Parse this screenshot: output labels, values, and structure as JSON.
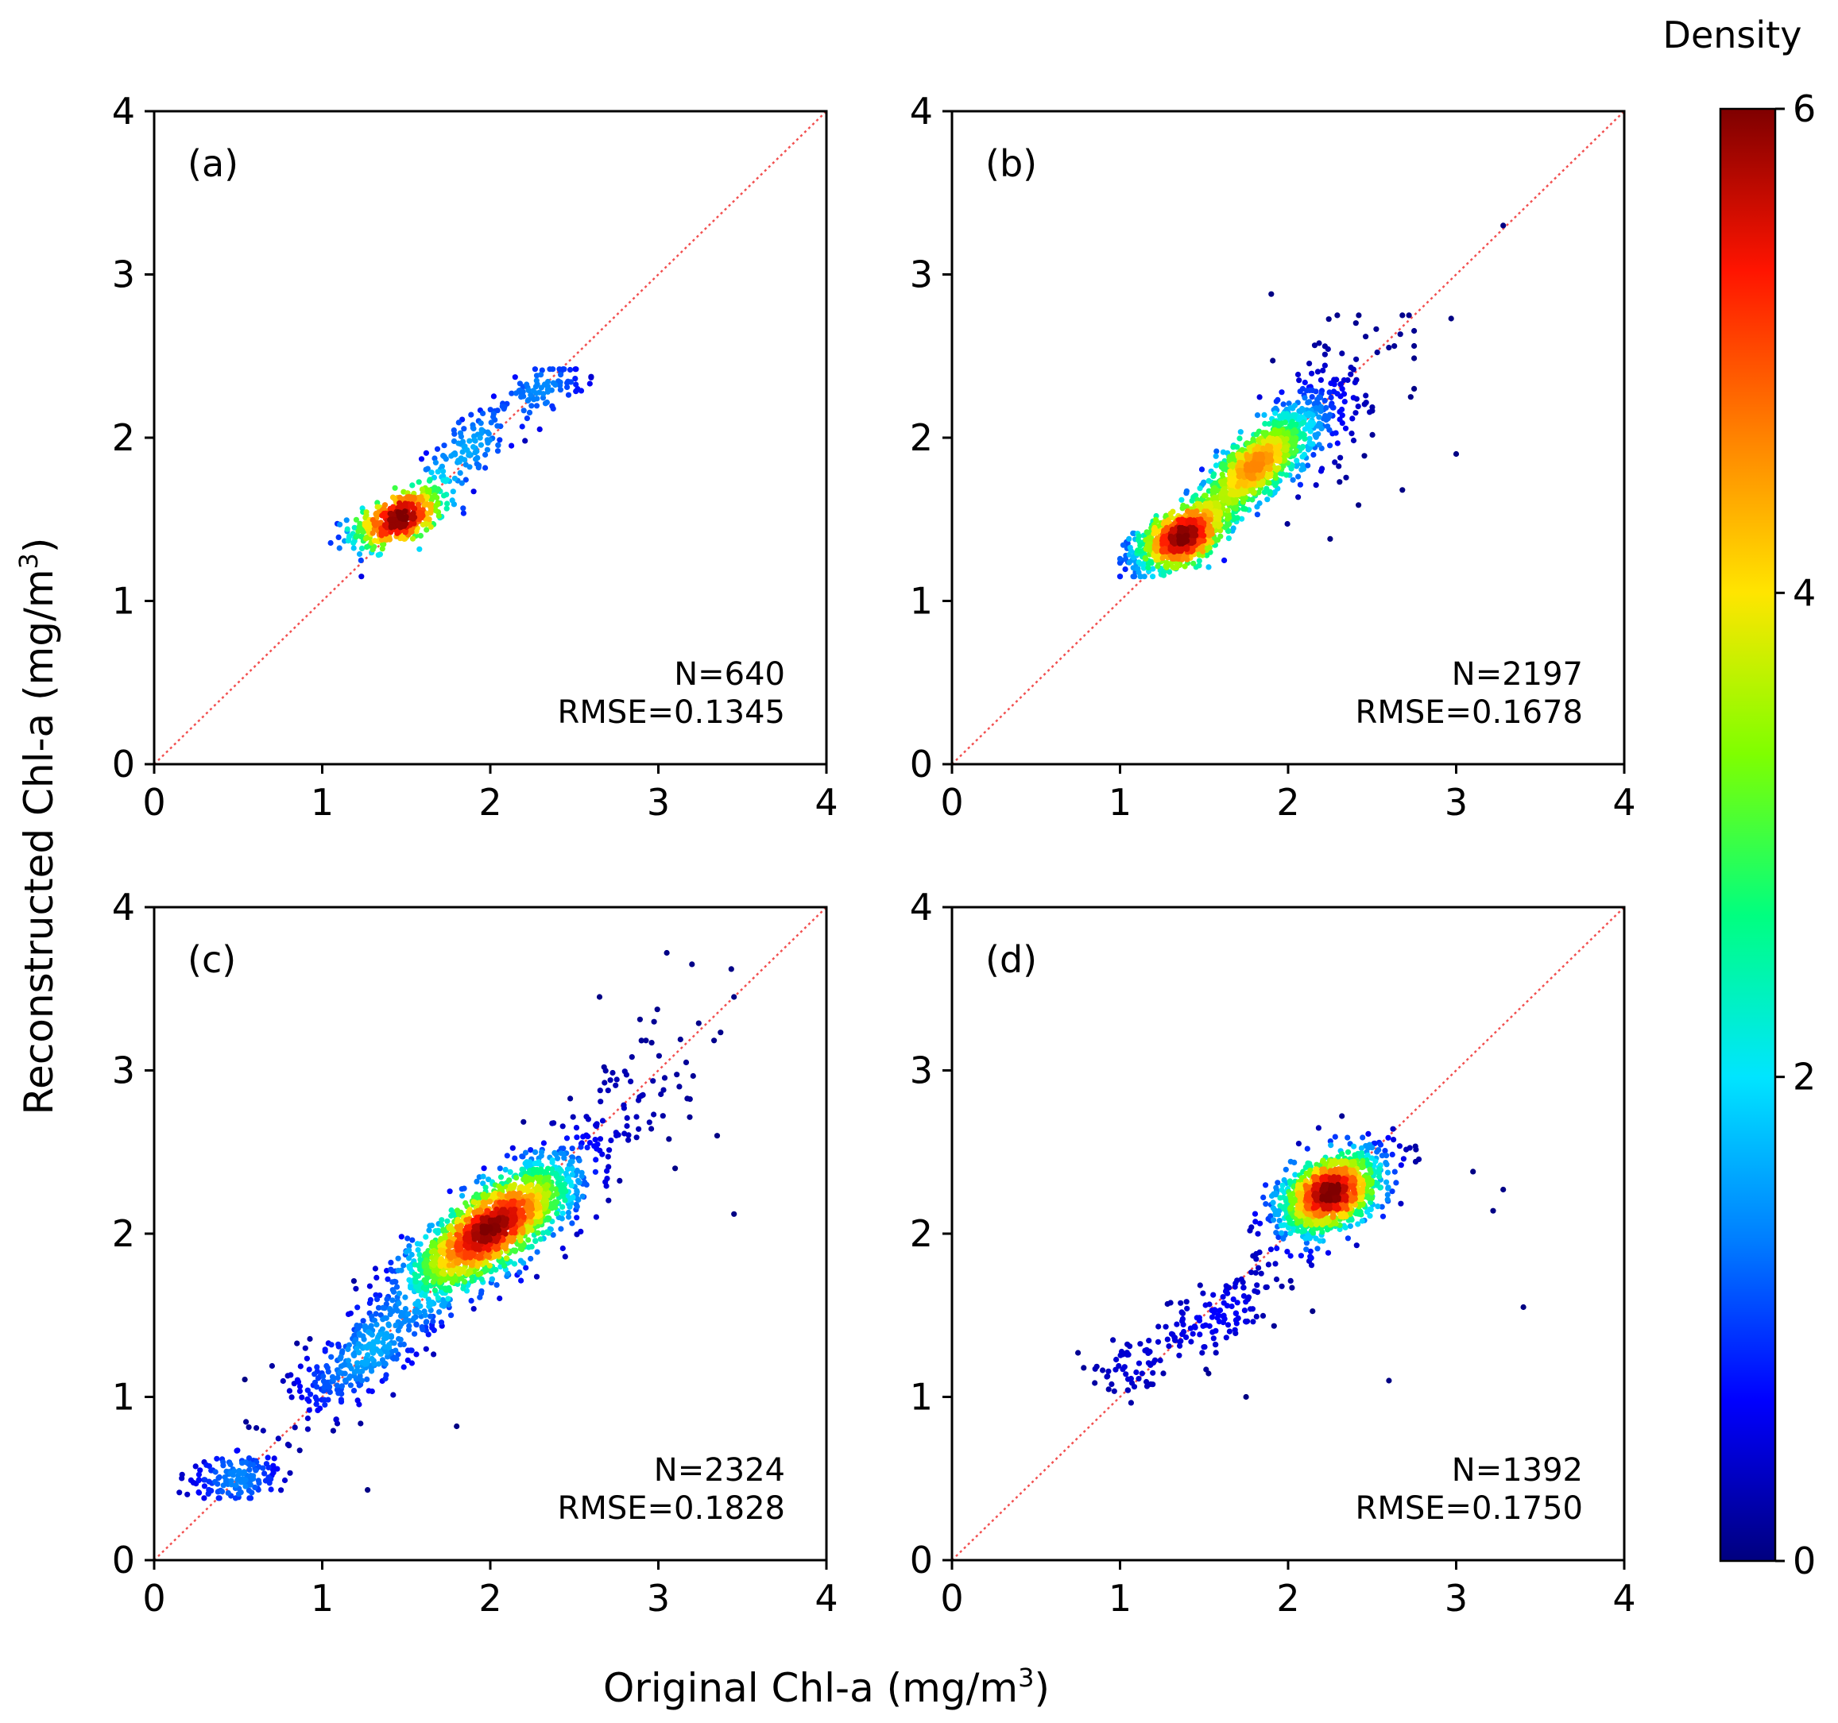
{
  "colors": {
    "diagonal": "#f25050",
    "colormap": [
      "#00007f",
      "#0000ff",
      "#007fff",
      "#00e5ff",
      "#00ff80",
      "#7fff00",
      "#ffe500",
      "#ff7f00",
      "#ff1400",
      "#7f0000"
    ]
  },
  "chart_data": [
    {
      "type": "scatter",
      "panel_label": "(a)",
      "n_text": "N=640",
      "rmse_text": "RMSE=0.1345",
      "n": 640,
      "rmse": 0.1345,
      "xlim": [
        0,
        4
      ],
      "ylim": [
        0,
        4
      ],
      "xticks": [
        "0",
        "1",
        "2",
        "3",
        "4"
      ],
      "yticks": [
        "0",
        "1",
        "2",
        "3",
        "4"
      ],
      "clusters": [
        {
          "cx": 1.45,
          "cy": 1.5,
          "sx": 0.14,
          "sy": 0.09,
          "rho": 0.5,
          "count": 430
        },
        {
          "cx": 1.9,
          "cy": 1.95,
          "sx": 0.17,
          "sy": 0.17,
          "rho": 0.8,
          "count": 140
        },
        {
          "cx": 2.35,
          "cy": 2.32,
          "sx": 0.11,
          "sy": 0.07,
          "rho": 0.3,
          "count": 70
        }
      ],
      "x_range": [
        1.05,
        2.6
      ],
      "y_range": [
        1.15,
        2.42
      ]
    },
    {
      "type": "scatter",
      "panel_label": "(b)",
      "n_text": "N=2197",
      "rmse_text": "RMSE=0.1678",
      "n": 2197,
      "rmse": 0.1678,
      "xlim": [
        0,
        4
      ],
      "ylim": [
        0,
        4
      ],
      "xticks": [
        "0",
        "1",
        "2",
        "3",
        "4"
      ],
      "yticks": [
        "0",
        "1",
        "2",
        "3",
        "4"
      ],
      "clusters": [
        {
          "cx": 1.35,
          "cy": 1.38,
          "sx": 0.13,
          "sy": 0.09,
          "rho": 0.5,
          "count": 900
        },
        {
          "cx": 1.8,
          "cy": 1.82,
          "sx": 0.2,
          "sy": 0.2,
          "rho": 0.85,
          "count": 1150
        },
        {
          "cx": 2.2,
          "cy": 2.15,
          "sx": 0.25,
          "sy": 0.25,
          "rho": 0.5,
          "count": 147
        }
      ],
      "outliers": [
        [
          3.28,
          3.3
        ],
        [
          2.97,
          2.73
        ],
        [
          3.0,
          1.9
        ],
        [
          1.9,
          2.88
        ],
        [
          2.68,
          1.68
        ],
        [
          2.25,
          1.38
        ]
      ],
      "x_range": [
        1.0,
        2.75
      ],
      "y_range": [
        1.15,
        2.75
      ]
    },
    {
      "type": "scatter",
      "panel_label": "(c)",
      "n_text": "N=2324",
      "rmse_text": "RMSE=0.1828",
      "n": 2324,
      "rmse": 0.1828,
      "xlim": [
        0,
        4
      ],
      "ylim": [
        0,
        4
      ],
      "xticks": [
        "0",
        "1",
        "2",
        "3",
        "4"
      ],
      "yticks": [
        "0",
        "1",
        "2",
        "3",
        "4"
      ],
      "clusters": [
        {
          "cx": 2.0,
          "cy": 2.02,
          "sx": 0.27,
          "sy": 0.22,
          "rho": 0.8,
          "count": 1750
        },
        {
          "cx": 1.25,
          "cy": 1.25,
          "sx": 0.22,
          "sy": 0.2,
          "rho": 0.7,
          "count": 330
        },
        {
          "cx": 0.5,
          "cy": 0.5,
          "sx": 0.14,
          "sy": 0.08,
          "rho": 0.3,
          "count": 150
        },
        {
          "cx": 2.75,
          "cy": 2.75,
          "sx": 0.25,
          "sy": 0.28,
          "rho": 0.6,
          "count": 94
        }
      ],
      "outliers": [
        [
          3.05,
          3.72
        ],
        [
          3.2,
          3.65
        ],
        [
          3.45,
          3.45
        ],
        [
          3.35,
          2.6
        ],
        [
          3.45,
          2.12
        ],
        [
          1.8,
          0.82
        ],
        [
          1.27,
          0.43
        ],
        [
          3.1,
          2.4
        ],
        [
          2.65,
          3.45
        ]
      ],
      "x_range": [
        0.15,
        3.5
      ],
      "y_range": [
        0.38,
        3.75
      ]
    },
    {
      "type": "scatter",
      "panel_label": "(d)",
      "n_text": "N=1392",
      "rmse_text": "RMSE=0.1750",
      "n": 1392,
      "rmse": 0.175,
      "xlim": [
        0,
        4
      ],
      "ylim": [
        0,
        4
      ],
      "xticks": [
        "0",
        "1",
        "2",
        "3",
        "4"
      ],
      "yticks": [
        "0",
        "1",
        "2",
        "3",
        "4"
      ],
      "clusters": [
        {
          "cx": 2.25,
          "cy": 2.25,
          "sx": 0.16,
          "sy": 0.13,
          "rho": 0.5,
          "count": 1200
        },
        {
          "cx": 1.55,
          "cy": 1.5,
          "sx": 0.22,
          "sy": 0.18,
          "rho": 0.75,
          "count": 150
        },
        {
          "cx": 1.0,
          "cy": 1.15,
          "sx": 0.14,
          "sy": 0.08,
          "rho": 0.3,
          "count": 42
        }
      ],
      "outliers": [
        [
          3.1,
          2.38
        ],
        [
          3.28,
          2.27
        ],
        [
          3.22,
          2.14
        ],
        [
          3.4,
          1.55
        ],
        [
          2.6,
          1.1
        ],
        [
          1.75,
          1.0
        ],
        [
          2.32,
          2.72
        ]
      ],
      "x_range": [
        0.75,
        2.8
      ],
      "y_range": [
        0.95,
        2.75
      ]
    }
  ],
  "axis_labels": {
    "x_prefix": "Original Chl-a (mg/m",
    "x_sup": "3",
    "x_suffix": ")",
    "y_prefix": "Reconstructed Chl-a (mg/m",
    "y_sup": "3",
    "y_suffix": ")"
  },
  "colorbar": {
    "title": "Density",
    "range": [
      0,
      6
    ],
    "ticks": [
      "0",
      "2",
      "4",
      "6"
    ]
  }
}
